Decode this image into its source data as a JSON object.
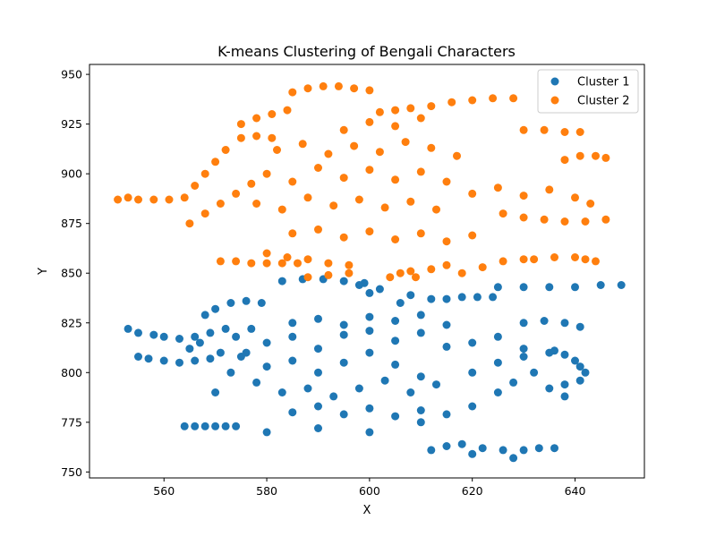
{
  "chart_data": {
    "type": "scatter",
    "title": "K-means Clustering of Bengali Characters",
    "xlabel": "X",
    "ylabel": "Y",
    "xlim": [
      545.5,
      653.5
    ],
    "ylim": [
      747,
      955
    ],
    "xticks": [
      560,
      580,
      600,
      620,
      640
    ],
    "yticks": [
      750,
      775,
      800,
      825,
      850,
      875,
      900,
      925,
      950
    ],
    "grid": false,
    "legend_position": "top-right",
    "series": [
      {
        "name": "Cluster 1",
        "color": "#1f77b4",
        "points": [
          [
            553,
            822
          ],
          [
            555,
            820
          ],
          [
            558,
            819
          ],
          [
            560,
            818
          ],
          [
            563,
            817
          ],
          [
            566,
            818
          ],
          [
            569,
            820
          ],
          [
            572,
            822
          ],
          [
            555,
            808
          ],
          [
            557,
            807
          ],
          [
            560,
            806
          ],
          [
            563,
            805
          ],
          [
            566,
            806
          ],
          [
            569,
            807
          ],
          [
            564,
            773
          ],
          [
            566,
            773
          ],
          [
            568,
            773
          ],
          [
            570,
            773
          ],
          [
            572,
            773
          ],
          [
            574,
            773
          ],
          [
            568,
            829
          ],
          [
            570,
            832
          ],
          [
            573,
            835
          ],
          [
            576,
            836
          ],
          [
            579,
            835
          ],
          [
            575,
            808
          ],
          [
            580,
            803
          ],
          [
            585,
            806
          ],
          [
            590,
            800
          ],
          [
            595,
            805
          ],
          [
            600,
            810
          ],
          [
            605,
            804
          ],
          [
            610,
            798
          ],
          [
            578,
            795
          ],
          [
            583,
            790
          ],
          [
            588,
            792
          ],
          [
            593,
            788
          ],
          [
            598,
            792
          ],
          [
            603,
            796
          ],
          [
            608,
            790
          ],
          [
            613,
            794
          ],
          [
            580,
            815
          ],
          [
            585,
            818
          ],
          [
            590,
            812
          ],
          [
            595,
            819
          ],
          [
            600,
            821
          ],
          [
            605,
            816
          ],
          [
            610,
            820
          ],
          [
            615,
            813
          ],
          [
            585,
            825
          ],
          [
            590,
            827
          ],
          [
            595,
            824
          ],
          [
            600,
            828
          ],
          [
            605,
            826
          ],
          [
            610,
            829
          ],
          [
            615,
            824
          ],
          [
            585,
            780
          ],
          [
            590,
            783
          ],
          [
            595,
            779
          ],
          [
            600,
            782
          ],
          [
            605,
            778
          ],
          [
            610,
            781
          ],
          [
            615,
            779
          ],
          [
            620,
            783
          ],
          [
            620,
            800
          ],
          [
            625,
            805
          ],
          [
            630,
            808
          ],
          [
            635,
            810
          ],
          [
            620,
            815
          ],
          [
            625,
            818
          ],
          [
            630,
            812
          ],
          [
            630,
            825
          ],
          [
            634,
            826
          ],
          [
            638,
            825
          ],
          [
            641,
            823
          ],
          [
            636,
            811
          ],
          [
            638,
            809
          ],
          [
            640,
            806
          ],
          [
            641,
            803
          ],
          [
            642,
            800
          ],
          [
            641,
            796
          ],
          [
            638,
            794
          ],
          [
            583,
            846
          ],
          [
            587,
            847
          ],
          [
            591,
            847
          ],
          [
            595,
            846
          ],
          [
            599,
            845
          ],
          [
            612,
            837
          ],
          [
            615,
            837
          ],
          [
            618,
            838
          ],
          [
            621,
            838
          ],
          [
            624,
            838
          ],
          [
            625,
            843
          ],
          [
            630,
            843
          ],
          [
            635,
            843
          ],
          [
            640,
            843
          ],
          [
            645,
            844
          ],
          [
            649,
            844
          ],
          [
            612,
            761
          ],
          [
            615,
            763
          ],
          [
            618,
            764
          ],
          [
            620,
            759
          ],
          [
            622,
            762
          ],
          [
            626,
            761
          ],
          [
            628,
            757
          ],
          [
            630,
            761
          ],
          [
            633,
            762
          ],
          [
            636,
            762
          ],
          [
            598,
            844
          ],
          [
            600,
            840
          ],
          [
            602,
            842
          ],
          [
            606,
            835
          ],
          [
            608,
            839
          ],
          [
            570,
            790
          ],
          [
            573,
            800
          ],
          [
            576,
            810
          ],
          [
            580,
            770
          ],
          [
            590,
            772
          ],
          [
            600,
            770
          ],
          [
            610,
            775
          ],
          [
            625,
            790
          ],
          [
            628,
            795
          ],
          [
            632,
            800
          ],
          [
            635,
            792
          ],
          [
            638,
            788
          ],
          [
            565,
            812
          ],
          [
            567,
            815
          ],
          [
            571,
            810
          ],
          [
            574,
            818
          ],
          [
            577,
            822
          ]
        ]
      },
      {
        "name": "Cluster 2",
        "color": "#ff7f0e",
        "points": [
          [
            551,
            887
          ],
          [
            553,
            888
          ],
          [
            555,
            887
          ],
          [
            558,
            887
          ],
          [
            561,
            887
          ],
          [
            564,
            888
          ],
          [
            566,
            894
          ],
          [
            568,
            900
          ],
          [
            570,
            906
          ],
          [
            572,
            912
          ],
          [
            575,
            918
          ],
          [
            578,
            919
          ],
          [
            581,
            918
          ],
          [
            571,
            856
          ],
          [
            574,
            856
          ],
          [
            577,
            855
          ],
          [
            580,
            855
          ],
          [
            583,
            855
          ],
          [
            586,
            855
          ],
          [
            585,
            941
          ],
          [
            588,
            943
          ],
          [
            591,
            944
          ],
          [
            594,
            944
          ],
          [
            597,
            943
          ],
          [
            600,
            942
          ],
          [
            602,
            931
          ],
          [
            605,
            932
          ],
          [
            608,
            933
          ],
          [
            612,
            934
          ],
          [
            616,
            936
          ],
          [
            620,
            937
          ],
          [
            624,
            938
          ],
          [
            628,
            938
          ],
          [
            630,
            922
          ],
          [
            634,
            922
          ],
          [
            638,
            921
          ],
          [
            641,
            921
          ],
          [
            580,
            900
          ],
          [
            585,
            896
          ],
          [
            590,
            903
          ],
          [
            595,
            898
          ],
          [
            600,
            902
          ],
          [
            605,
            897
          ],
          [
            610,
            901
          ],
          [
            615,
            896
          ],
          [
            578,
            885
          ],
          [
            583,
            882
          ],
          [
            588,
            888
          ],
          [
            593,
            884
          ],
          [
            598,
            887
          ],
          [
            603,
            883
          ],
          [
            608,
            886
          ],
          [
            613,
            882
          ],
          [
            585,
            870
          ],
          [
            590,
            872
          ],
          [
            595,
            868
          ],
          [
            600,
            871
          ],
          [
            605,
            867
          ],
          [
            610,
            870
          ],
          [
            615,
            866
          ],
          [
            620,
            869
          ],
          [
            582,
            912
          ],
          [
            587,
            915
          ],
          [
            592,
            910
          ],
          [
            597,
            914
          ],
          [
            602,
            911
          ],
          [
            607,
            916
          ],
          [
            612,
            913
          ],
          [
            617,
            909
          ],
          [
            620,
            890
          ],
          [
            625,
            893
          ],
          [
            630,
            889
          ],
          [
            635,
            892
          ],
          [
            640,
            888
          ],
          [
            643,
            885
          ],
          [
            626,
            880
          ],
          [
            630,
            878
          ],
          [
            634,
            877
          ],
          [
            638,
            876
          ],
          [
            642,
            876
          ],
          [
            646,
            877
          ],
          [
            638,
            907
          ],
          [
            641,
            909
          ],
          [
            644,
            909
          ],
          [
            646,
            908
          ],
          [
            580,
            860
          ],
          [
            584,
            858
          ],
          [
            588,
            857
          ],
          [
            592,
            855
          ],
          [
            596,
            854
          ],
          [
            588,
            848
          ],
          [
            592,
            849
          ],
          [
            596,
            850
          ],
          [
            604,
            848
          ],
          [
            606,
            850
          ],
          [
            608,
            851
          ],
          [
            618,
            850
          ],
          [
            622,
            853
          ],
          [
            626,
            856
          ],
          [
            630,
            857
          ],
          [
            632,
            857
          ],
          [
            636,
            858
          ],
          [
            640,
            858
          ],
          [
            642,
            857
          ],
          [
            644,
            856
          ],
          [
            609,
            848
          ],
          [
            612,
            852
          ],
          [
            615,
            854
          ],
          [
            575,
            925
          ],
          [
            578,
            928
          ],
          [
            581,
            930
          ],
          [
            584,
            932
          ],
          [
            595,
            922
          ],
          [
            600,
            926
          ],
          [
            605,
            924
          ],
          [
            610,
            928
          ],
          [
            565,
            875
          ],
          [
            568,
            880
          ],
          [
            571,
            885
          ],
          [
            574,
            890
          ],
          [
            577,
            895
          ]
        ]
      }
    ]
  }
}
